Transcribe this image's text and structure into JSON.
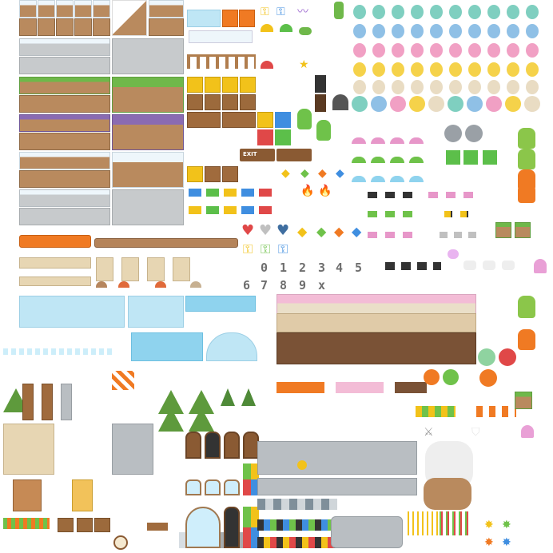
{
  "sheet": {
    "sign_exit": "EXIT",
    "digits": [
      "0",
      "1",
      "2",
      "3",
      "4",
      "5",
      "6",
      "7",
      "8",
      "9",
      "x"
    ]
  },
  "colors": {
    "dirt": "#b98a5e",
    "grass": "#6fb84a",
    "snow": "#eef6fb",
    "stone": "#c7cacc",
    "ice": "#bfe6f5",
    "water": "#8fd3ee",
    "orange": "#f07a23",
    "purple": "#8a6bb2",
    "pink": "#f3bcd6",
    "chocolate": "#7a5236"
  },
  "icons": [
    "key-icon",
    "heart-icon",
    "gem-icon",
    "coin-icon",
    "flag-icon",
    "mushroom-icon",
    "torch-icon",
    "bee-icon",
    "fish-icon",
    "bat-icon",
    "cactus-icon",
    "lock-icon",
    "exit-sign-icon",
    "warning-sign-icon",
    "sword-icon",
    "shield-icon",
    "clock-icon",
    "spark-icon",
    "lollipop-icon",
    "tree-icon"
  ]
}
